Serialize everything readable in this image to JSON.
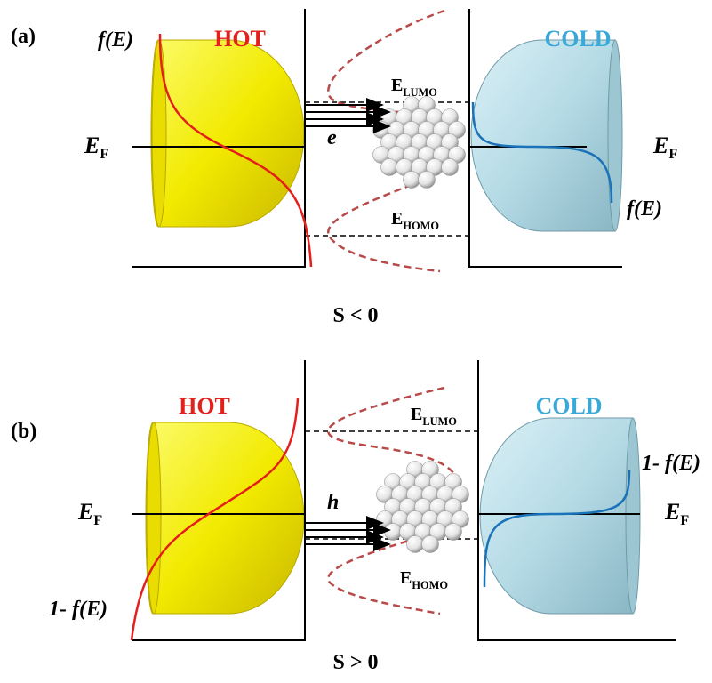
{
  "panels": [
    {
      "label": "(a)",
      "hot": "HOT",
      "cold": "COLD",
      "left_curve_label": "f(E)",
      "right_curve_label": "f(E)",
      "lumo": {
        "main": "E",
        "sub": "LUMO"
      },
      "homo": {
        "main": "E",
        "sub": "HOMO"
      },
      "fermi_left": {
        "main": "E",
        "sub": "F"
      },
      "fermi_right": {
        "main": "E",
        "sub": "F"
      },
      "carrier": "e",
      "caption": "S < 0"
    },
    {
      "label": "(b)",
      "hot": "HOT",
      "cold": "COLD",
      "left_curve_label": "1- f(E)",
      "right_curve_label": "1- f(E)",
      "lumo": {
        "main": "E",
        "sub": "LUMO"
      },
      "homo": {
        "main": "E",
        "sub": "HOMO"
      },
      "fermi_left": {
        "main": "E",
        "sub": "F"
      },
      "fermi_right": {
        "main": "E",
        "sub": "F"
      },
      "carrier": "h",
      "caption": "S > 0"
    }
  ]
}
